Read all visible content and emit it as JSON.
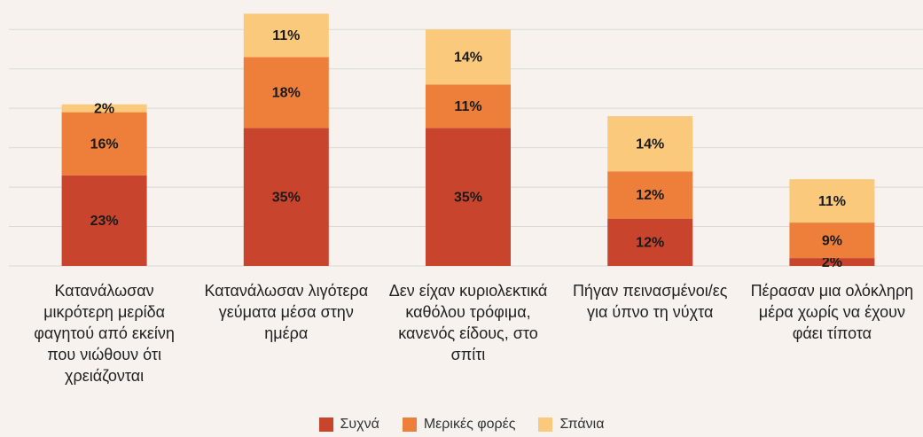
{
  "chart_data": {
    "type": "stacked_bar",
    "categories": [
      "Κατανάλωσαν μικρότερη μερίδα φαγητού από εκείνη που νιώθουν ότι χρειάζονται",
      "Κατανάλωσαν λιγότερα γεύματα μέσα στην ημέρα",
      "Δεν είχαν κυριολεκτικά καθόλου τρόφιμα, κανενός είδους, στο σπίτι",
      "Πήγαν πεινασμένοι/ες για ύπνο τη νύχτα",
      "Πέρασαν μια ολόκληρη μέρα χωρίς να έχουν φάει τίποτα"
    ],
    "series": [
      {
        "name": "Συχνά",
        "color": "#c9442d",
        "values": [
          23,
          35,
          35,
          12,
          2
        ],
        "value_labels": [
          "23%",
          "35%",
          "35%",
          "12%",
          "2%"
        ]
      },
      {
        "name": "Μερικές φορές",
        "color": "#ee7f3b",
        "values": [
          16,
          18,
          11,
          12,
          9
        ],
        "value_labels": [
          "16%",
          "18%",
          "11%",
          "12%",
          "9%"
        ]
      },
      {
        "name": "Σπάνια",
        "color": "#fbc97b",
        "values": [
          2,
          11,
          14,
          14,
          11
        ],
        "value_labels": [
          "2%",
          "11%",
          "14%",
          "14%",
          "11%"
        ]
      }
    ],
    "ylim": [
      0,
      65
    ],
    "yticks": [
      0,
      10,
      20,
      30,
      40,
      50,
      60
    ],
    "grid": true,
    "legend": "bottom"
  }
}
